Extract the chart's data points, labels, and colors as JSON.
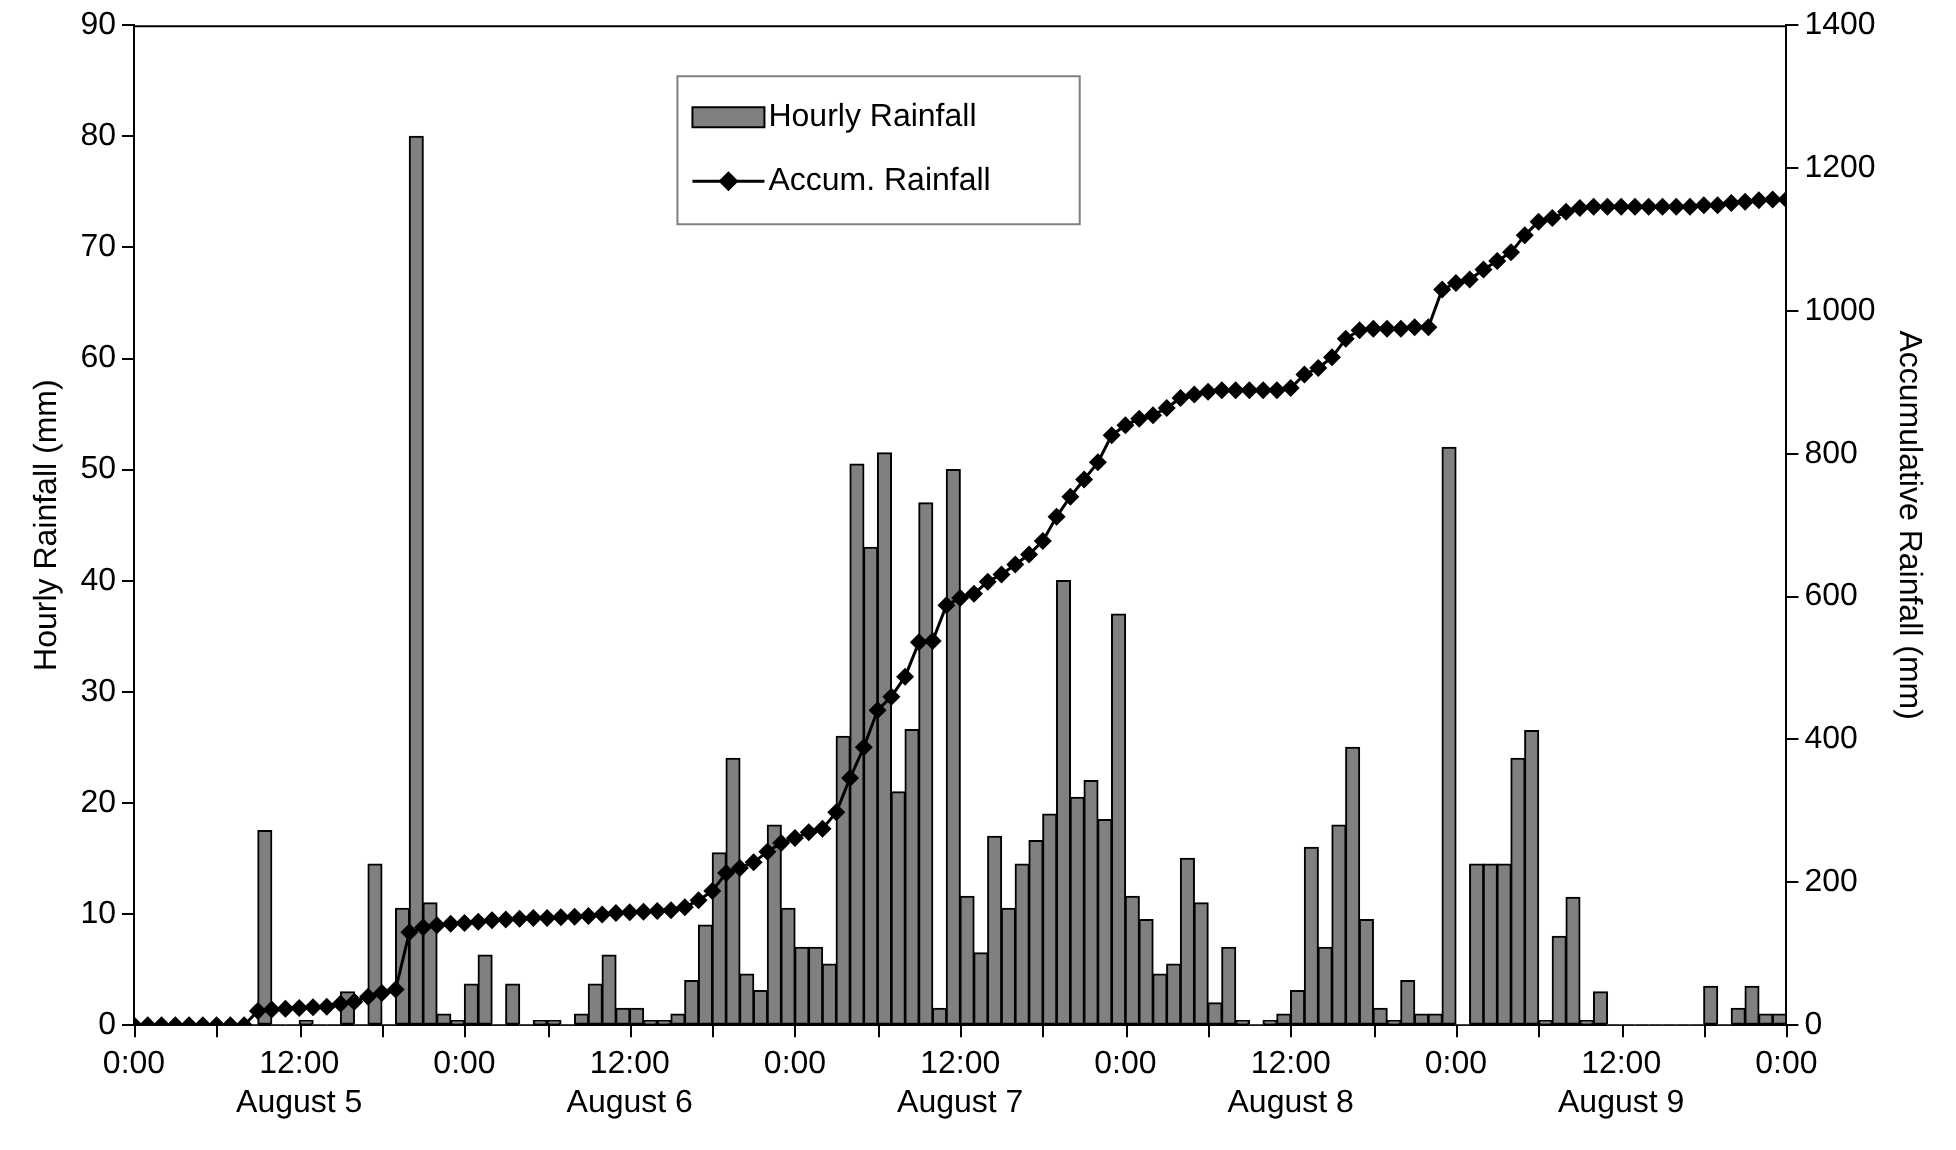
{
  "chart_data": {
    "type": "bar",
    "ylabel": "Hourly Rainfall (mm)",
    "y2label": "Accumulative Rainfall (mm)",
    "xlim": [
      "--08-05T00:00",
      "--08-10T00:00"
    ],
    "xticks": [
      {
        "value": "--08-05T00:00",
        "label": "0:00"
      },
      {
        "value": "--08-05T06:00",
        "label": null
      },
      {
        "value": "--08-05T12:00",
        "label": "12:00\nAugust 5"
      },
      {
        "value": "--08-05T18:00",
        "label": null
      },
      {
        "value": "--08-06T00:00",
        "label": "0:00"
      },
      {
        "value": "--08-06T06:00",
        "label": null
      },
      {
        "value": "--08-06T12:00",
        "label": "12:00\nAugust 6"
      },
      {
        "value": "--08-06T18:00",
        "label": null
      },
      {
        "value": "--08-07T00:00",
        "label": "0:00"
      },
      {
        "value": "--08-07T06:00",
        "label": null
      },
      {
        "value": "--08-07T12:00",
        "label": "12:00\nAugust 7"
      },
      {
        "value": "--08-07T18:00",
        "label": null
      },
      {
        "value": "--08-08T00:00",
        "label": "0:00"
      },
      {
        "value": "--08-08T06:00",
        "label": null
      },
      {
        "value": "--08-08T12:00",
        "label": "12:00\nAugust 8"
      },
      {
        "value": "--08-08T18:00",
        "label": null
      },
      {
        "value": "--08-09T00:00",
        "label": "0:00"
      },
      {
        "value": "--08-09T06:00",
        "label": null
      },
      {
        "value": "--08-09T12:00",
        "label": "12:00\nAugust 9"
      },
      {
        "value": "--08-09T18:00",
        "label": null
      },
      {
        "value": "--08-10T00:00",
        "label": "0:00"
      }
    ],
    "ylim": [
      0,
      90
    ],
    "yticks": [
      0,
      10,
      20,
      30,
      40,
      50,
      60,
      70,
      80,
      90
    ],
    "y2lim": [
      0,
      1400
    ],
    "y2ticks": [
      0,
      200,
      400,
      600,
      800,
      1000,
      1200,
      1400
    ],
    "grid": false,
    "legend": "top",
    "series": [
      {
        "name": "Hourly Rainfall",
        "color": "#808080",
        "x": [
          "--08-05T00:30",
          "--08-05T01:30",
          "--08-05T02:30",
          "--08-05T03:30",
          "--08-05T04:30",
          "--08-05T05:30",
          "--08-05T06:30",
          "--08-05T07:30",
          "--08-05T08:30",
          "--08-05T09:30",
          "--08-05T10:30",
          "--08-05T11:30",
          "--08-05T12:30",
          "--08-05T13:30",
          "--08-05T14:30",
          "--08-05T15:30",
          "--08-05T16:30",
          "--08-05T17:30",
          "--08-05T18:30",
          "--08-05T19:30",
          "--08-05T20:30",
          "--08-05T21:30",
          "--08-05T22:30",
          "--08-05T23:30",
          "--08-06T00:30",
          "--08-06T01:30",
          "--08-06T02:30",
          "--08-06T03:30",
          "--08-06T04:30",
          "--08-06T05:30",
          "--08-06T06:30",
          "--08-06T07:30",
          "--08-06T08:30",
          "--08-06T09:30",
          "--08-06T10:30",
          "--08-06T11:30",
          "--08-06T12:30",
          "--08-06T13:30",
          "--08-06T14:30",
          "--08-06T15:30",
          "--08-06T16:30",
          "--08-06T17:30",
          "--08-06T18:30",
          "--08-06T19:30",
          "--08-06T20:30",
          "--08-06T21:30",
          "--08-06T22:30",
          "--08-06T23:30",
          "--08-07T00:30",
          "--08-07T01:30",
          "--08-07T02:30",
          "--08-07T03:30",
          "--08-07T04:30",
          "--08-07T05:30",
          "--08-07T06:30",
          "--08-07T07:30",
          "--08-07T08:30",
          "--08-07T09:30",
          "--08-07T10:30",
          "--08-07T11:30",
          "--08-07T12:30",
          "--08-07T13:30",
          "--08-07T14:30",
          "--08-07T15:30",
          "--08-07T16:30",
          "--08-07T17:30",
          "--08-07T18:30",
          "--08-07T19:30",
          "--08-07T20:30",
          "--08-07T21:30",
          "--08-07T22:30",
          "--08-07T23:30",
          "--08-08T00:30",
          "--08-08T01:30",
          "--08-08T02:30",
          "--08-08T03:30",
          "--08-08T04:30",
          "--08-08T05:30",
          "--08-08T06:30",
          "--08-08T07:30",
          "--08-08T08:30",
          "--08-08T09:30",
          "--08-08T10:30",
          "--08-08T11:30",
          "--08-08T12:30",
          "--08-08T13:30",
          "--08-08T14:30",
          "--08-08T15:30",
          "--08-08T16:30",
          "--08-08T17:30",
          "--08-08T18:30",
          "--08-08T19:30",
          "--08-08T20:30",
          "--08-08T21:30",
          "--08-08T22:30",
          "--08-08T23:30",
          "--08-09T00:30",
          "--08-09T01:30",
          "--08-09T02:30",
          "--08-09T03:30",
          "--08-09T04:30",
          "--08-09T05:30",
          "--08-09T06:30",
          "--08-09T07:30",
          "--08-09T08:30",
          "--08-09T09:30",
          "--08-09T10:30",
          "--08-09T11:30",
          "--08-09T12:30",
          "--08-09T13:30",
          "--08-09T14:30",
          "--08-09T15:30",
          "--08-09T16:30",
          "--08-09T17:30",
          "--08-09T18:30",
          "--08-09T19:30",
          "--08-09T20:30",
          "--08-09T21:30",
          "--08-09T22:30",
          "--08-09T23:30"
        ],
        "values": [
          0,
          0,
          0,
          0,
          0,
          0,
          0,
          0,
          0,
          17.5,
          0,
          0,
          0.4,
          0,
          0,
          3,
          0,
          14.5,
          0,
          10.5,
          80,
          11,
          1,
          0.4,
          3.7,
          6.3,
          0,
          3.7,
          0,
          0.4,
          0.4,
          0,
          1,
          3.7,
          6.3,
          1.5,
          1.5,
          0.4,
          0.4,
          1,
          4,
          9,
          15.5,
          24,
          4.6,
          3.1,
          18,
          10.5,
          7,
          7,
          5.5,
          26,
          50.5,
          43,
          51.5,
          21,
          26.6,
          47,
          1.5,
          50,
          11.6,
          6.5,
          17,
          10.5,
          14.5,
          16.6,
          19,
          40,
          20.5,
          22,
          18.5,
          37,
          11.6,
          9.5,
          4.6,
          5.5,
          15,
          11,
          2,
          7,
          0.4,
          0,
          0.4,
          1,
          3.1,
          16,
          7,
          18,
          25,
          9.5,
          1.5,
          0.4,
          4,
          1,
          1,
          52,
          0,
          14.5,
          14.5,
          14.5,
          24,
          26.5,
          0.4,
          8,
          11.5,
          0.4,
          3,
          0,
          0,
          0,
          0,
          0,
          0,
          0,
          3.5,
          0,
          1.5,
          3.5,
          1,
          1
        ]
      },
      {
        "name": "Accum. Rainfall",
        "type": "line",
        "axis": "y2",
        "color": "#000000",
        "marker": "diamond",
        "line_style": "solid",
        "x": [
          "--08-05T00:00",
          "--08-05T01:00",
          "--08-05T02:00",
          "--08-05T03:00",
          "--08-05T04:00",
          "--08-05T05:00",
          "--08-05T06:00",
          "--08-05T07:00",
          "--08-05T08:00",
          "--08-05T09:00",
          "--08-05T10:00",
          "--08-05T11:00",
          "--08-05T12:00",
          "--08-05T13:00",
          "--08-05T14:00",
          "--08-05T15:00",
          "--08-05T16:00",
          "--08-05T17:00",
          "--08-05T18:00",
          "--08-05T19:00",
          "--08-05T20:00",
          "--08-05T21:00",
          "--08-05T22:00",
          "--08-05T23:00",
          "--08-06T00:00",
          "--08-06T01:00",
          "--08-06T02:00",
          "--08-06T03:00",
          "--08-06T04:00",
          "--08-06T05:00",
          "--08-06T06:00",
          "--08-06T07:00",
          "--08-06T08:00",
          "--08-06T09:00",
          "--08-06T10:00",
          "--08-06T11:00",
          "--08-06T12:00",
          "--08-06T13:00",
          "--08-06T14:00",
          "--08-06T15:00",
          "--08-06T16:00",
          "--08-06T17:00",
          "--08-06T18:00",
          "--08-06T19:00",
          "--08-06T20:00",
          "--08-06T21:00",
          "--08-06T22:00",
          "--08-06T23:00",
          "--08-07T00:00",
          "--08-07T01:00",
          "--08-07T02:00",
          "--08-07T03:00",
          "--08-07T04:00",
          "--08-07T05:00",
          "--08-07T06:00",
          "--08-07T07:00",
          "--08-07T08:00",
          "--08-07T09:00",
          "--08-07T10:00",
          "--08-07T11:00",
          "--08-07T12:00",
          "--08-07T13:00",
          "--08-07T14:00",
          "--08-07T15:00",
          "--08-07T16:00",
          "--08-07T17:00",
          "--08-07T18:00",
          "--08-07T19:00",
          "--08-07T20:00",
          "--08-07T21:00",
          "--08-07T22:00",
          "--08-07T23:00",
          "--08-08T00:00",
          "--08-08T01:00",
          "--08-08T02:00",
          "--08-08T03:00",
          "--08-08T04:00",
          "--08-08T05:00",
          "--08-08T06:00",
          "--08-08T07:00",
          "--08-08T08:00",
          "--08-08T09:00",
          "--08-08T10:00",
          "--08-08T11:00",
          "--08-08T12:00",
          "--08-08T13:00",
          "--08-08T14:00",
          "--08-08T15:00",
          "--08-08T16:00",
          "--08-08T17:00",
          "--08-08T18:00",
          "--08-08T19:00",
          "--08-08T20:00",
          "--08-08T21:00",
          "--08-08T22:00",
          "--08-08T23:00",
          "--08-09T00:00",
          "--08-09T01:00",
          "--08-09T02:00",
          "--08-09T03:00",
          "--08-09T04:00",
          "--08-09T05:00",
          "--08-09T06:00",
          "--08-09T07:00",
          "--08-09T08:00",
          "--08-09T09:00",
          "--08-09T10:00",
          "--08-09T11:00",
          "--08-09T12:00",
          "--08-09T13:00",
          "--08-09T14:00",
          "--08-09T15:00",
          "--08-09T16:00",
          "--08-09T17:00",
          "--08-09T18:00",
          "--08-09T19:00",
          "--08-09T20:00",
          "--08-09T21:00",
          "--08-09T22:00",
          "--08-09T23:00",
          "--08-10T00:00"
        ],
        "values": [
          0,
          0,
          0,
          0,
          0,
          0,
          0,
          0,
          0,
          20,
          22,
          23,
          24,
          25,
          26,
          30,
          33,
          40,
          45,
          50,
          130,
          137,
          140,
          142,
          143,
          145,
          147,
          148,
          149,
          150,
          150,
          151,
          152,
          153,
          155,
          157,
          158,
          159,
          160,
          161,
          165,
          175,
          188,
          213,
          220,
          228,
          243,
          255,
          262,
          270,
          275,
          298,
          346,
          389,
          441,
          460,
          488,
          536,
          538,
          588,
          598,
          604,
          621,
          631,
          645,
          659,
          678,
          712,
          740,
          764,
          788,
          826,
          840,
          849,
          854,
          864,
          878,
          883,
          887,
          889,
          889,
          889,
          889,
          889,
          892,
          911,
          920,
          935,
          961,
          973,
          975,
          975,
          975,
          977,
          977,
          1030,
          1039,
          1044,
          1058,
          1070,
          1082,
          1106,
          1125,
          1130,
          1139,
          1144,
          1146,
          1146,
          1146,
          1146,
          1146,
          1146,
          1146,
          1146,
          1148,
          1148,
          1151,
          1153,
          1155,
          1156,
          1156
        ]
      }
    ]
  }
}
